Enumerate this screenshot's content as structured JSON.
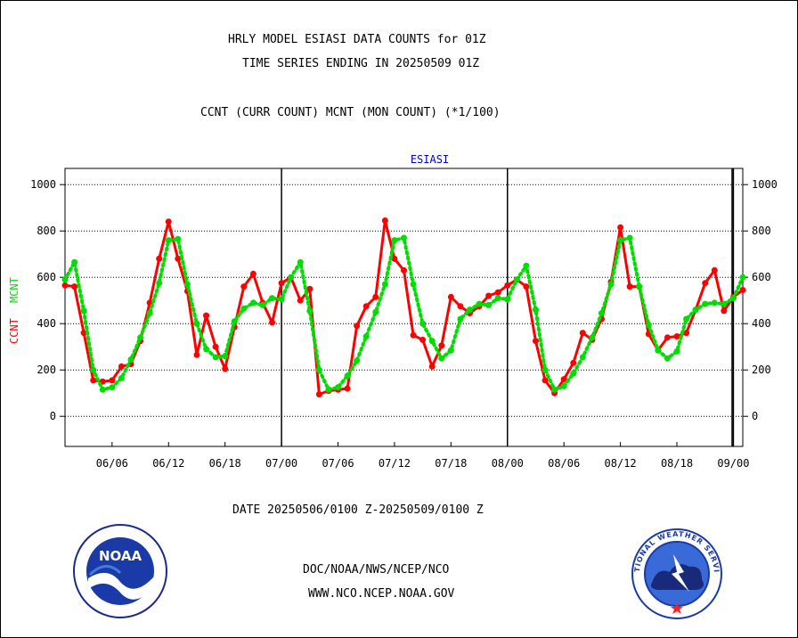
{
  "header": {
    "line1": "HRLY MODEL ESIASI DATA COUNTS for 01Z",
    "line2": "TIME SERIES ENDING IN 20250509 01Z",
    "line3": "CCNT (CURR COUNT) MCNT (MON COUNT) (*1/100)"
  },
  "footer": {
    "date_range": "DATE 20250506/0100 Z-20250509/0100 Z",
    "org": "DOC/NOAA/NWS/NCEP/NCO",
    "url": "WWW.NCO.NCEP.NOAA.GOV"
  },
  "logos": {
    "noaa_text": "NOAA",
    "nws_ring_text": "NATIONAL WEATHER SERVICE"
  },
  "colors": {
    "ccnt": "#ff0000",
    "mcnt": "#00dd00",
    "panel_title": "#0000cc",
    "footer_blue": "#0000cc",
    "date_red": "#ff0000"
  },
  "chart_data": {
    "type": "line",
    "title": "ESIASI",
    "ylabel_series": [
      "CCNT",
      "MCNT"
    ],
    "ylim": [
      -130,
      1070
    ],
    "yticks": [
      0,
      200,
      400,
      600,
      800,
      1000
    ],
    "x_start_hour": 1,
    "x_end_hour": 73,
    "xtick_labels": [
      "06/06",
      "06/12",
      "06/18",
      "07/00",
      "07/06",
      "07/12",
      "07/18",
      "08/00",
      "08/06",
      "08/12",
      "08/18",
      "09/00"
    ],
    "day_boundaries": [
      "07/00",
      "08/00",
      "09/00"
    ],
    "grid": true,
    "series": [
      {
        "name": "CCNT",
        "color": "#ff0000",
        "x_hours": [
          1,
          2,
          3,
          4,
          5,
          6,
          7,
          8,
          9,
          10,
          11,
          12,
          13,
          14,
          15,
          16,
          17,
          18,
          19,
          20,
          21,
          22,
          23,
          24,
          25,
          26,
          27,
          28,
          29,
          30,
          31,
          32,
          33,
          34,
          35,
          36,
          37,
          38,
          39,
          40,
          41,
          42,
          43,
          44,
          45,
          46,
          47,
          48,
          49,
          50,
          51,
          52,
          53,
          54,
          55,
          56,
          57,
          58,
          59,
          60,
          61,
          62,
          63,
          64,
          65,
          66,
          67,
          68,
          69,
          70,
          71,
          72,
          73
        ],
        "values": [
          565,
          560,
          360,
          155,
          150,
          155,
          215,
          225,
          325,
          490,
          680,
          840,
          680,
          540,
          265,
          435,
          300,
          205,
          385,
          560,
          615,
          490,
          405,
          575,
          600,
          500,
          550,
          95,
          110,
          115,
          120,
          390,
          475,
          515,
          845,
          680,
          630,
          350,
          330,
          215,
          305,
          515,
          475,
          445,
          475,
          520,
          535,
          565,
          590,
          560,
          325,
          155,
          100,
          160,
          230,
          360,
          330,
          420,
          580,
          815,
          560,
          560,
          355,
          285,
          340,
          345,
          360,
          460,
          575,
          630,
          455,
          515,
          545
        ]
      },
      {
        "name": "MCNT",
        "color": "#00dd00",
        "x_hours": [
          1,
          2,
          3,
          4,
          5,
          6,
          7,
          8,
          9,
          10,
          11,
          12,
          13,
          14,
          15,
          16,
          17,
          18,
          19,
          20,
          21,
          22,
          23,
          24,
          25,
          26,
          27,
          28,
          29,
          30,
          31,
          32,
          33,
          34,
          35,
          36,
          37,
          38,
          39,
          40,
          41,
          42,
          43,
          44,
          45,
          46,
          47,
          48,
          49,
          50,
          51,
          52,
          53,
          54,
          55,
          56,
          57,
          58,
          59,
          60,
          61,
          62,
          63,
          64,
          65,
          66,
          67,
          68,
          69,
          70,
          71,
          72,
          73
        ],
        "values": [
          590,
          665,
          455,
          200,
          115,
          125,
          165,
          245,
          340,
          445,
          575,
          760,
          765,
          570,
          400,
          290,
          255,
          260,
          410,
          465,
          490,
          480,
          510,
          505,
          600,
          665,
          455,
          200,
          115,
          125,
          175,
          240,
          345,
          450,
          570,
          760,
          770,
          570,
          400,
          325,
          250,
          285,
          420,
          460,
          485,
          480,
          510,
          505,
          590,
          650,
          460,
          200,
          115,
          130,
          185,
          255,
          340,
          445,
          570,
          760,
          770,
          560,
          395,
          285,
          250,
          280,
          420,
          460,
          485,
          490,
          485,
          510,
          600
        ]
      }
    ]
  }
}
